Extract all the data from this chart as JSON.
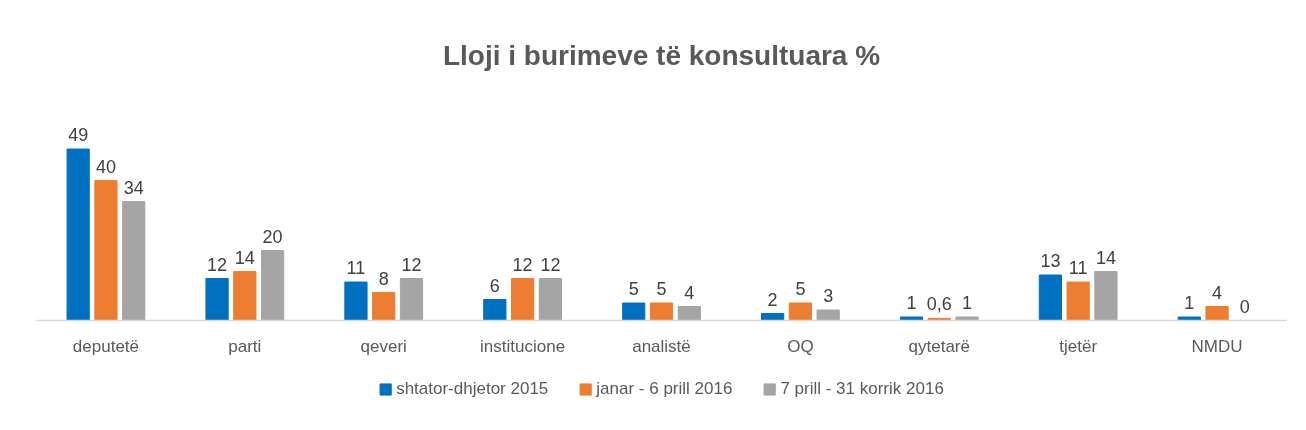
{
  "chart_data": {
    "type": "bar",
    "title": "Lloji i burimeve të konsultuara %",
    "categories": [
      "deputetë",
      "parti",
      "qeveri",
      "institucione",
      "analistë",
      "OQ",
      "qytetarë",
      "tjetër",
      "NMDU"
    ],
    "series": [
      {
        "name": "shtator-dhjetor 2015",
        "color": "#0070c0",
        "values": [
          49,
          12,
          11,
          6,
          5,
          2,
          1,
          13,
          1
        ],
        "value_labels": [
          "49",
          "12",
          "11",
          "6",
          "5",
          "2",
          "1",
          "13",
          "1"
        ]
      },
      {
        "name": "janar - 6 prill 2016",
        "color": "#ed7d31",
        "values": [
          40,
          14,
          8,
          12,
          5,
          5,
          0.6,
          11,
          4
        ],
        "value_labels": [
          "40",
          "14",
          "8",
          "12",
          "5",
          "5",
          "0,6",
          "11",
          "4"
        ]
      },
      {
        "name": "7 prill - 31 korrik 2016",
        "color": "#a5a5a5",
        "values": [
          34,
          20,
          12,
          12,
          4,
          3,
          1,
          14,
          0
        ],
        "value_labels": [
          "34",
          "20",
          "12",
          "12",
          "4",
          "3",
          "1",
          "14",
          "0"
        ]
      }
    ],
    "legend": "bottom",
    "grid": false
  }
}
